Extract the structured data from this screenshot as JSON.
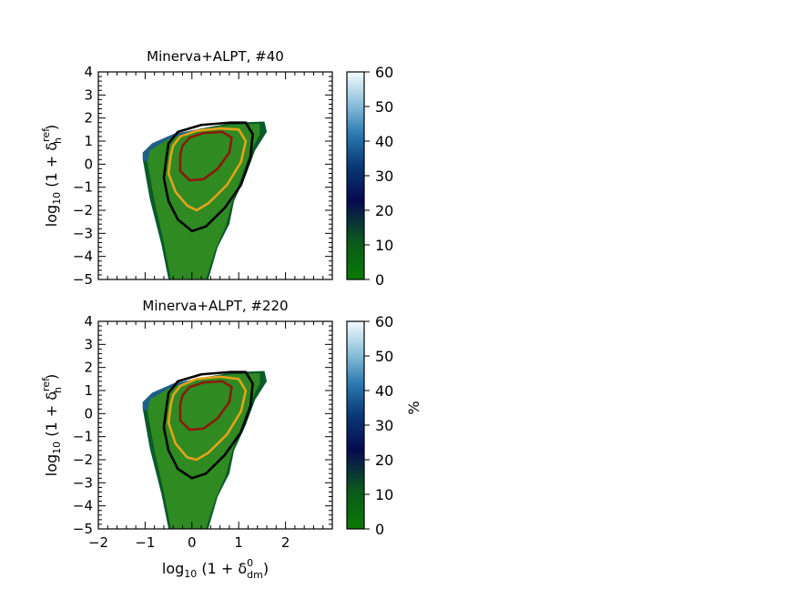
{
  "chart_data": [
    {
      "type": "heatmap",
      "title": "Minerva+ALPT, #40",
      "ylabel": {
        "base": "log",
        "sub": "10",
        "rest": "(1 + δ",
        "sub2": "h",
        "sup2": "ref",
        "close": ")"
      },
      "xlim": [
        -2,
        3
      ],
      "ylim": [
        -5,
        4
      ],
      "xticks": [
        "−2",
        "−1",
        "0",
        "1",
        "2"
      ],
      "yticks": [
        "−5",
        "−4",
        "−3",
        "−2",
        "−1",
        "0",
        "1",
        "2",
        "3",
        "4"
      ],
      "colorbar": {
        "range": [
          0,
          60
        ],
        "ticks": [
          "0",
          "10",
          "20",
          "30",
          "40",
          "50",
          "60"
        ]
      },
      "contours": [
        {
          "color": "#000000",
          "points": [
            [
              -0.55,
              0.2
            ],
            [
              -0.6,
              -0.6
            ],
            [
              -0.5,
              -1.6
            ],
            [
              -0.3,
              -2.4
            ],
            [
              0.0,
              -2.9
            ],
            [
              0.3,
              -2.7
            ],
            [
              0.7,
              -1.9
            ],
            [
              1.05,
              -0.9
            ],
            [
              1.25,
              0.3
            ],
            [
              1.3,
              1.3
            ],
            [
              1.15,
              1.8
            ],
            [
              0.8,
              1.8
            ],
            [
              0.2,
              1.7
            ],
            [
              -0.3,
              1.4
            ],
            [
              -0.5,
              0.9
            ]
          ]
        },
        {
          "color": "#e6a21a",
          "points": [
            [
              -0.45,
              0.4
            ],
            [
              -0.5,
              -0.4
            ],
            [
              -0.35,
              -1.2
            ],
            [
              -0.1,
              -1.8
            ],
            [
              0.1,
              -2.0
            ],
            [
              0.35,
              -1.7
            ],
            [
              0.75,
              -0.9
            ],
            [
              1.05,
              0.1
            ],
            [
              1.15,
              1.0
            ],
            [
              1.0,
              1.5
            ],
            [
              0.6,
              1.55
            ],
            [
              0.1,
              1.45
            ],
            [
              -0.25,
              1.2
            ],
            [
              -0.4,
              0.8
            ]
          ]
        },
        {
          "color": "#8b1a0a",
          "points": [
            [
              -0.25,
              0.4
            ],
            [
              -0.25,
              -0.3
            ],
            [
              -0.05,
              -0.7
            ],
            [
              0.25,
              -0.65
            ],
            [
              0.55,
              -0.2
            ],
            [
              0.8,
              0.5
            ],
            [
              0.85,
              1.15
            ],
            [
              0.65,
              1.4
            ],
            [
              0.25,
              1.35
            ],
            [
              -0.05,
              1.15
            ],
            [
              -0.2,
              0.8
            ]
          ]
        }
      ]
    },
    {
      "type": "heatmap",
      "title": "Minerva+ALPT, #220",
      "xlabel": {
        "base": "log",
        "sub": "10",
        "rest": "(1 + δ",
        "sub2": "dm",
        "sup2": "0",
        "close": ")"
      },
      "ylabel": {
        "base": "log",
        "sub": "10",
        "rest": "(1 + δ",
        "sub2": "h",
        "sup2": "ref",
        "close": ")"
      },
      "xlim": [
        -2,
        3
      ],
      "ylim": [
        -5,
        4
      ],
      "xticks": [
        "−2",
        "−1",
        "0",
        "1",
        "2"
      ],
      "yticks": [
        "−5",
        "−4",
        "−3",
        "−2",
        "−1",
        "0",
        "1",
        "2",
        "3",
        "4"
      ],
      "colorbar": {
        "range": [
          0,
          60
        ],
        "ticks": [
          "0",
          "10",
          "20",
          "30",
          "40",
          "50",
          "60"
        ],
        "label": "%"
      },
      "contours": [
        {
          "color": "#000000",
          "points": [
            [
              -0.55,
              0.2
            ],
            [
              -0.6,
              -0.6
            ],
            [
              -0.5,
              -1.6
            ],
            [
              -0.3,
              -2.4
            ],
            [
              0.0,
              -2.8
            ],
            [
              0.3,
              -2.6
            ],
            [
              0.7,
              -1.8
            ],
            [
              1.05,
              -0.8
            ],
            [
              1.25,
              0.3
            ],
            [
              1.3,
              1.3
            ],
            [
              1.15,
              1.8
            ],
            [
              0.8,
              1.8
            ],
            [
              0.2,
              1.7
            ],
            [
              -0.3,
              1.4
            ],
            [
              -0.5,
              0.9
            ]
          ]
        },
        {
          "color": "#e6a21a",
          "points": [
            [
              -0.45,
              0.4
            ],
            [
              -0.5,
              -0.4
            ],
            [
              -0.35,
              -1.3
            ],
            [
              -0.1,
              -1.9
            ],
            [
              0.1,
              -2.0
            ],
            [
              0.35,
              -1.7
            ],
            [
              0.75,
              -0.9
            ],
            [
              1.05,
              0.1
            ],
            [
              1.15,
              1.0
            ],
            [
              1.0,
              1.5
            ],
            [
              0.6,
              1.6
            ],
            [
              0.1,
              1.5
            ],
            [
              -0.25,
              1.2
            ],
            [
              -0.4,
              0.8
            ]
          ]
        },
        {
          "color": "#8b1a0a",
          "points": [
            [
              -0.25,
              0.4
            ],
            [
              -0.25,
              -0.3
            ],
            [
              -0.05,
              -0.7
            ],
            [
              0.25,
              -0.65
            ],
            [
              0.55,
              -0.2
            ],
            [
              0.8,
              0.5
            ],
            [
              0.85,
              1.15
            ],
            [
              0.65,
              1.4
            ],
            [
              0.25,
              1.35
            ],
            [
              -0.05,
              1.15
            ],
            [
              -0.2,
              0.8
            ]
          ]
        }
      ]
    }
  ]
}
